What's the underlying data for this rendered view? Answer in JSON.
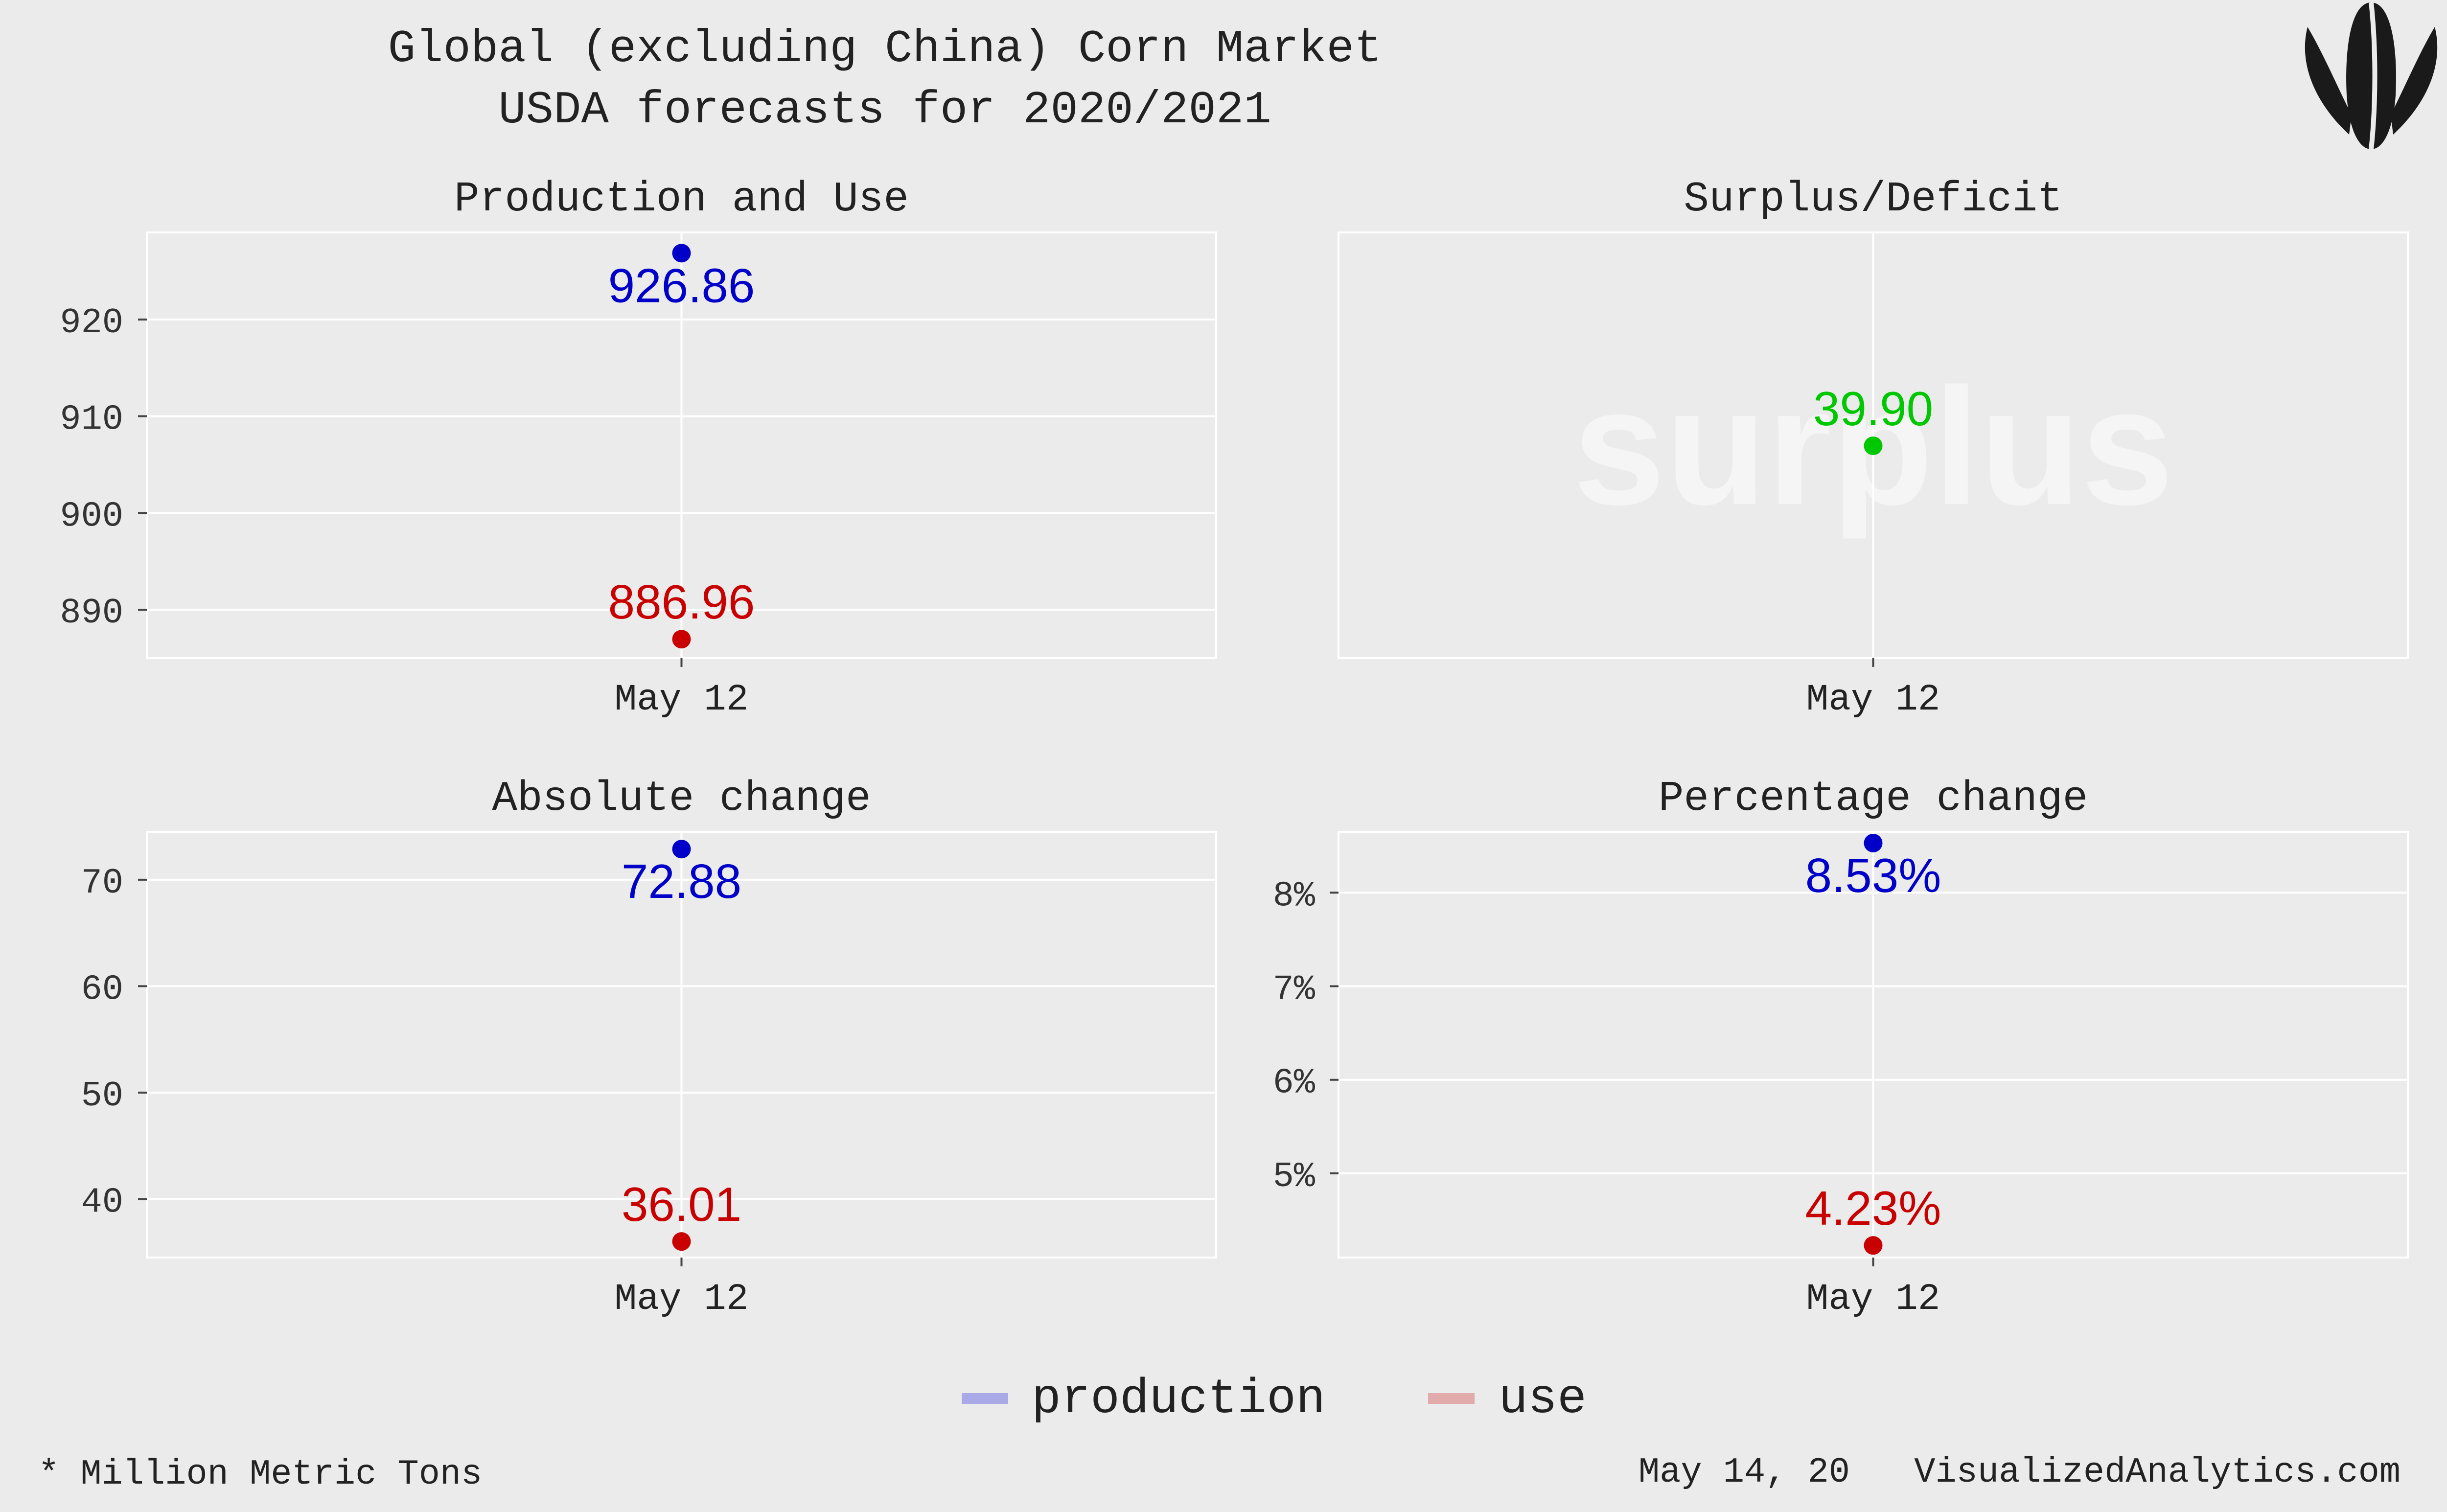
{
  "header": {
    "title": "Global (excluding China) Corn Market",
    "subtitle": "USDA forecasts for 2020/2021"
  },
  "chart_data": [
    {
      "type": "scatter",
      "panel": "Production and Use",
      "categories": [
        "May 12"
      ],
      "ylim": [
        885,
        929
      ],
      "yticks": [
        890,
        900,
        910,
        920
      ],
      "series": [
        {
          "name": "production",
          "values": [
            926.86
          ],
          "labels": [
            "926.86"
          ]
        },
        {
          "name": "use",
          "values": [
            886.96
          ],
          "labels": [
            "886.96"
          ]
        }
      ]
    },
    {
      "type": "scatter",
      "panel": "Surplus/Deficit",
      "categories": [
        "May 12"
      ],
      "ylim": [
        0,
        80
      ],
      "yticks": [],
      "watermark": "surplus",
      "series": [
        {
          "values": [
            39.9
          ],
          "labels": [
            "39.90"
          ]
        }
      ]
    },
    {
      "type": "scatter",
      "panel": "Absolute change",
      "categories": [
        "May 12"
      ],
      "ylim": [
        34.5,
        74.5
      ],
      "yticks": [
        40,
        50,
        60,
        70
      ],
      "series": [
        {
          "name": "production",
          "values": [
            72.88
          ],
          "labels": [
            "72.88"
          ]
        },
        {
          "name": "use",
          "values": [
            36.01
          ],
          "labels": [
            "36.01"
          ]
        }
      ]
    },
    {
      "type": "scatter",
      "panel": "Percentage change",
      "categories": [
        "May 12"
      ],
      "ylim": [
        4.1,
        8.65
      ],
      "yticks": [
        5,
        6,
        7,
        8
      ],
      "yticklabels": [
        "5%",
        "6%",
        "7%",
        "8%"
      ],
      "series": [
        {
          "name": "production",
          "values": [
            8.53
          ],
          "labels": [
            "8.53%"
          ]
        },
        {
          "name": "use",
          "values": [
            4.23
          ],
          "labels": [
            "4.23%"
          ]
        }
      ]
    }
  ],
  "legend": {
    "position": "bottom",
    "items": [
      {
        "label": "production",
        "color": "#a9a9e8"
      },
      {
        "label": "use",
        "color": "#e2aaaa"
      }
    ]
  },
  "colors": {
    "production": "#0000c8",
    "use": "#c80000",
    "surplus": "#00c800"
  },
  "logo_icon": "corn-cob-icon",
  "footer": {
    "units_note": "* Million Metric Tons",
    "date": "May 14, 20",
    "source": "VisualizedAnalytics.com"
  }
}
